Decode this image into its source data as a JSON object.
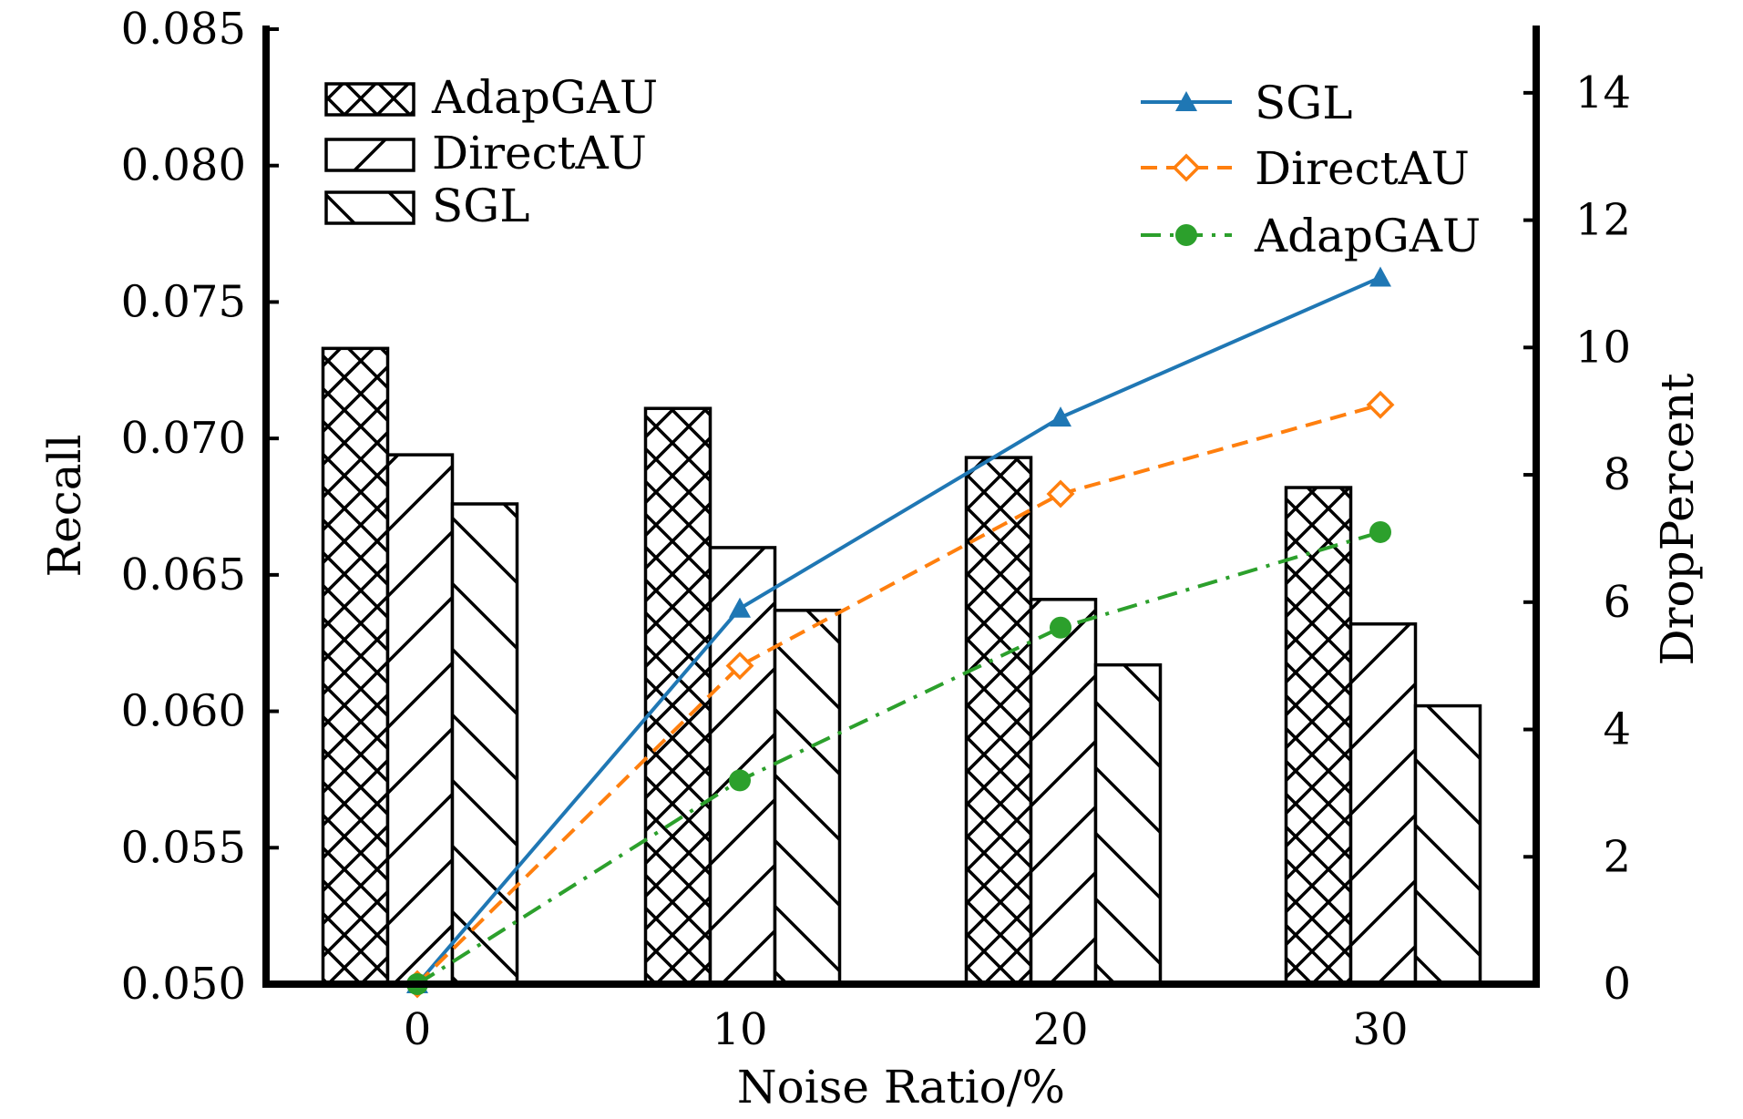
{
  "chart_data": {
    "type": "bar+line",
    "title": "",
    "xlabel": "Noise Ratio/%",
    "ylabel": "Recall",
    "y2label": "DropPercent",
    "categories": [
      "0",
      "10",
      "20",
      "30"
    ],
    "ylim": [
      0.05,
      0.085
    ],
    "yticks": [
      "0.050",
      "0.055",
      "0.060",
      "0.065",
      "0.070",
      "0.075",
      "0.080",
      "0.085"
    ],
    "y2lim": [
      0,
      15
    ],
    "y2ticks": [
      "0",
      "2",
      "4",
      "6",
      "8",
      "10",
      "12",
      "14"
    ],
    "grid": false,
    "bar_series": [
      {
        "name": "AdapGAU",
        "hatch": "crosshatch",
        "values": [
          0.0733,
          0.0711,
          0.0693,
          0.0682
        ]
      },
      {
        "name": "DirectAU",
        "hatch": "forward-diagonal",
        "values": [
          0.0694,
          0.066,
          0.0641,
          0.0632
        ]
      },
      {
        "name": "SGL",
        "hatch": "backward-diagonal",
        "values": [
          0.0676,
          0.0637,
          0.0617,
          0.0602
        ]
      }
    ],
    "line_series": [
      {
        "name": "SGL",
        "color": "#1f77b4",
        "marker": "triangle",
        "style": "solid",
        "values": [
          0.0,
          5.9,
          8.9,
          11.1
        ]
      },
      {
        "name": "DirectAU",
        "color": "#ff7f0e",
        "marker": "open-diamond",
        "style": "dashed",
        "values": [
          0.0,
          5.0,
          7.7,
          9.1
        ]
      },
      {
        "name": "AdapGAU",
        "color": "#2ca02c",
        "marker": "circle",
        "style": "dash-dot",
        "values": [
          0.0,
          3.2,
          5.6,
          7.1
        ]
      }
    ],
    "bar_legend": {
      "placement": "top-left",
      "entries": [
        "AdapGAU",
        "DirectAU",
        "SGL"
      ]
    },
    "line_legend": {
      "placement": "top-right",
      "entries": [
        "SGL",
        "DirectAU",
        "AdapGAU"
      ]
    }
  }
}
